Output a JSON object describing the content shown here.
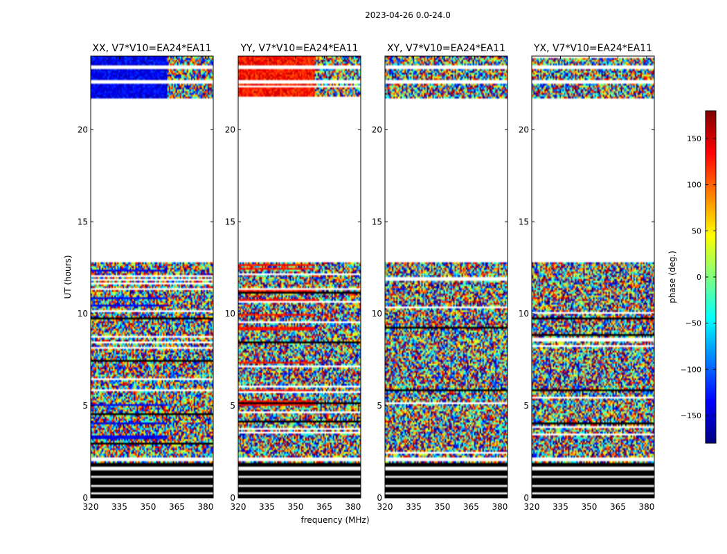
{
  "suptitle": "2023-04-26 0.0-24.0",
  "ylabel": "UT (hours)",
  "xlabel": "frequency (MHz)",
  "colorbar": {
    "label": "phase (deg.)",
    "range": [
      -180,
      180
    ],
    "ticks": [
      "150",
      "100",
      "50",
      "0",
      "−50",
      "−100",
      "−150"
    ],
    "tick_values": [
      150,
      100,
      50,
      0,
      -50,
      -100,
      -150
    ]
  },
  "chart_data": [
    {
      "type": "heatmap",
      "title": "XX, V7*V10=EA24*EA11",
      "x_ticks": [
        "320",
        "335",
        "350",
        "365",
        "380"
      ],
      "x_tick_values": [
        320,
        335,
        350,
        365,
        380
      ],
      "y_ticks": [
        "0",
        "5",
        "10",
        "15",
        "20"
      ],
      "y_tick_values": [
        0,
        5,
        10,
        15,
        20
      ],
      "xlim": [
        320,
        384
      ],
      "ylim": [
        0,
        24
      ],
      "colormap": "jet",
      "mean_phase": -140
    },
    {
      "type": "heatmap",
      "title": "YY, V7*V10=EA24*EA11",
      "x_ticks": [
        "320",
        "335",
        "350",
        "365",
        "380"
      ],
      "x_tick_values": [
        320,
        335,
        350,
        365,
        380
      ],
      "y_ticks": [
        "0",
        "5",
        "10",
        "15",
        "20"
      ],
      "y_tick_values": [
        0,
        5,
        10,
        15,
        20
      ],
      "xlim": [
        320,
        384
      ],
      "ylim": [
        0,
        24
      ],
      "colormap": "jet",
      "mean_phase": 130
    },
    {
      "type": "heatmap",
      "title": "XY, V7*V10=EA24*EA11",
      "x_ticks": [
        "320",
        "335",
        "350",
        "365",
        "380"
      ],
      "x_tick_values": [
        320,
        335,
        350,
        365,
        380
      ],
      "y_ticks": [
        "0",
        "5",
        "10",
        "15",
        "20"
      ],
      "y_tick_values": [
        0,
        5,
        10,
        15,
        20
      ],
      "xlim": [
        320,
        384
      ],
      "ylim": [
        0,
        24
      ],
      "colormap": "jet",
      "mean_phase": null
    },
    {
      "type": "heatmap",
      "title": "YX, V7*V10=EA24*EA11",
      "x_ticks": [
        "320",
        "335",
        "350",
        "365",
        "380"
      ],
      "x_tick_values": [
        320,
        335,
        350,
        365,
        380
      ],
      "y_ticks": [
        "0",
        "5",
        "10",
        "15",
        "20"
      ],
      "y_tick_values": [
        0,
        5,
        10,
        15,
        20
      ],
      "xlim": [
        320,
        384
      ],
      "ylim": [
        0,
        24
      ],
      "colormap": "jet",
      "mean_phase": null
    }
  ]
}
